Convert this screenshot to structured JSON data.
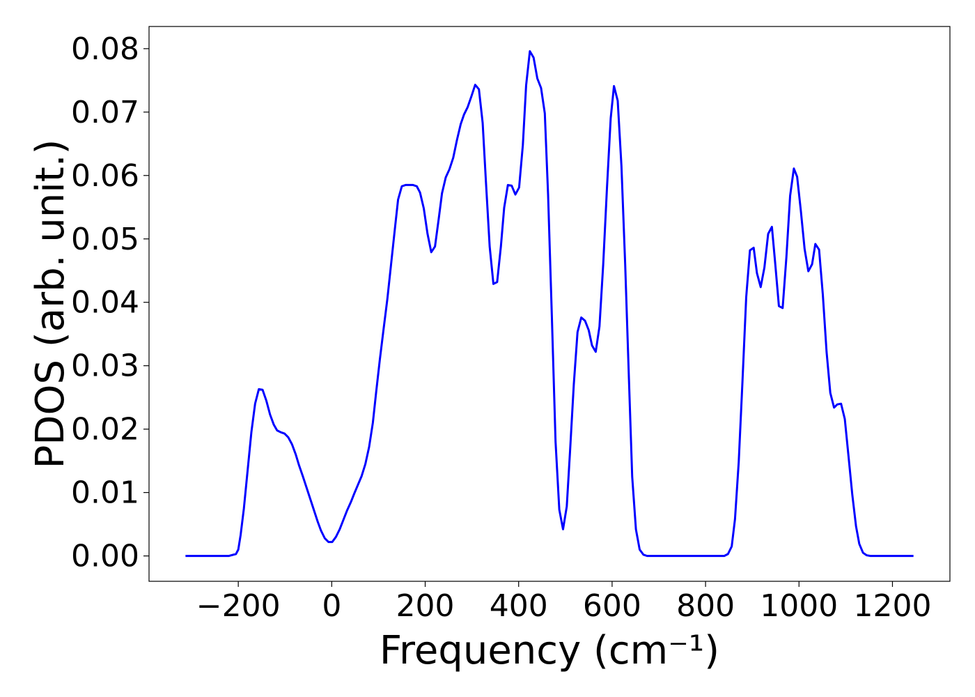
{
  "chart_data": {
    "type": "line",
    "xlabel": "Frequency (cm⁻¹)",
    "ylabel": "PDOS (arb. unit.)",
    "x": [
      -313,
      -220,
      -205,
      -200,
      -195,
      -188,
      -180,
      -172,
      -164,
      -156,
      -148,
      -140,
      -132,
      -124,
      -117,
      -109,
      -101,
      -93,
      -85,
      -77,
      -70,
      -62,
      -54,
      -46,
      -38,
      -30,
      -23,
      -15,
      -7,
      1,
      9,
      17,
      25,
      33,
      41,
      48,
      56,
      64,
      72,
      80,
      88,
      95,
      103,
      111,
      119,
      127,
      135,
      142,
      150,
      158,
      166,
      174,
      182,
      189,
      197,
      205,
      213,
      221,
      229,
      236,
      244,
      252,
      260,
      268,
      276,
      283,
      291,
      299,
      307,
      315,
      323,
      330,
      338,
      346,
      354,
      362,
      369,
      377,
      385,
      393,
      401,
      409,
      416,
      424,
      432,
      440,
      448,
      456,
      463,
      471,
      479,
      487,
      495,
      503,
      510,
      518,
      526,
      534,
      542,
      550,
      557,
      565,
      573,
      581,
      589,
      597,
      604,
      612,
      620,
      628,
      636,
      643,
      651,
      659,
      667,
      675,
      840,
      848,
      856,
      863,
      871,
      879,
      887,
      895,
      903,
      910,
      918,
      926,
      934,
      942,
      949,
      957,
      965,
      973,
      981,
      989,
      996,
      1004,
      1012,
      1020,
      1028,
      1035,
      1043,
      1051,
      1059,
      1067,
      1075,
      1082,
      1090,
      1098,
      1106,
      1114,
      1122,
      1129,
      1137,
      1145,
      1153,
      1245
    ],
    "series": [
      {
        "color": "#0000ff",
        "values": [
          0,
          0,
          0.0003,
          0.001,
          0.0033,
          0.0075,
          0.0135,
          0.0195,
          0.024,
          0.0263,
          0.0262,
          0.0245,
          0.0223,
          0.0207,
          0.0198,
          0.0195,
          0.0193,
          0.0187,
          0.0176,
          0.016,
          0.0143,
          0.0126,
          0.0108,
          0.009,
          0.0072,
          0.0054,
          0.004,
          0.0028,
          0.0022,
          0.0022,
          0.003,
          0.0042,
          0.0057,
          0.0072,
          0.0085,
          0.0098,
          0.0112,
          0.0126,
          0.0145,
          0.0172,
          0.021,
          0.0258,
          0.031,
          0.0358,
          0.0405,
          0.046,
          0.0515,
          0.0562,
          0.0583,
          0.0585,
          0.0585,
          0.0585,
          0.0583,
          0.0573,
          0.0548,
          0.0508,
          0.0479,
          0.0488,
          0.0532,
          0.0572,
          0.0597,
          0.061,
          0.0628,
          0.0656,
          0.0681,
          0.0696,
          0.0708,
          0.0725,
          0.0743,
          0.0736,
          0.0683,
          0.059,
          0.0488,
          0.0429,
          0.0432,
          0.0488,
          0.0549,
          0.0585,
          0.0584,
          0.057,
          0.0581,
          0.0648,
          0.0742,
          0.0796,
          0.0786,
          0.0753,
          0.0738,
          0.0698,
          0.057,
          0.038,
          0.018,
          0.0073,
          0.0042,
          0.0078,
          0.0165,
          0.027,
          0.0353,
          0.0376,
          0.0371,
          0.0356,
          0.0332,
          0.0322,
          0.0362,
          0.046,
          0.058,
          0.069,
          0.0741,
          0.0718,
          0.0615,
          0.046,
          0.028,
          0.0125,
          0.0042,
          0.001,
          0.0002,
          0,
          0,
          0.0003,
          0.0015,
          0.0058,
          0.0148,
          0.0275,
          0.0408,
          0.0482,
          0.0486,
          0.0446,
          0.0424,
          0.0455,
          0.0508,
          0.0519,
          0.0462,
          0.0394,
          0.0391,
          0.0471,
          0.0568,
          0.0611,
          0.0598,
          0.0544,
          0.0484,
          0.0449,
          0.046,
          0.0492,
          0.0483,
          0.0412,
          0.0322,
          0.0257,
          0.0234,
          0.0239,
          0.024,
          0.0216,
          0.0157,
          0.0097,
          0.0047,
          0.0019,
          0.0005,
          0.0001,
          0,
          0
        ]
      }
    ],
    "xlim": [
      -391,
      1323
    ],
    "ylim": [
      -0.004,
      0.0835
    ],
    "xticks": [
      {
        "value": -200,
        "label": "−200"
      },
      0,
      200,
      400,
      600,
      800,
      1000,
      1200
    ],
    "yticks": [
      {
        "value": 0,
        "label": "0.00"
      },
      0.01,
      0.02,
      0.03,
      0.04,
      0.05,
      0.06,
      0.07,
      0.08
    ],
    "grid": false
  }
}
